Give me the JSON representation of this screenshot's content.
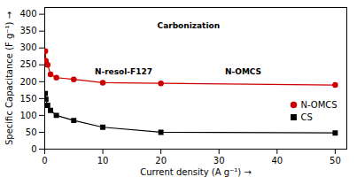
{
  "chart_data": {
    "type": "line",
    "x": [
      0.1,
      0.2,
      0.5,
      1.0,
      2.0,
      5.0,
      10.0,
      20.0,
      50.0
    ],
    "series": [
      {
        "name": "N-OMCS",
        "color": "#cc0000",
        "marker": "circle",
        "values": [
          291,
          262,
          250,
          222,
          212,
          207,
          197,
          195,
          190
        ]
      },
      {
        "name": "CS",
        "color": "#000000",
        "marker": "square",
        "values": [
          165,
          148,
          130,
          115,
          100,
          85,
          65,
          50,
          48
        ]
      }
    ],
    "xlabel": "Current density (A g⁻¹)",
    "ylabel": "Specific Capacitance (F g⁻¹)",
    "xlim": [
      0,
      52
    ],
    "ylim": [
      0,
      420
    ],
    "xticks": [
      0,
      10,
      20,
      30,
      40,
      50
    ],
    "yticks": [
      0,
      50,
      100,
      150,
      200,
      250,
      300,
      350,
      400
    ],
    "annotations": [
      "N-resol-F127",
      "Carbonization",
      "N-OMCS"
    ],
    "legend": "right",
    "grid": false
  }
}
